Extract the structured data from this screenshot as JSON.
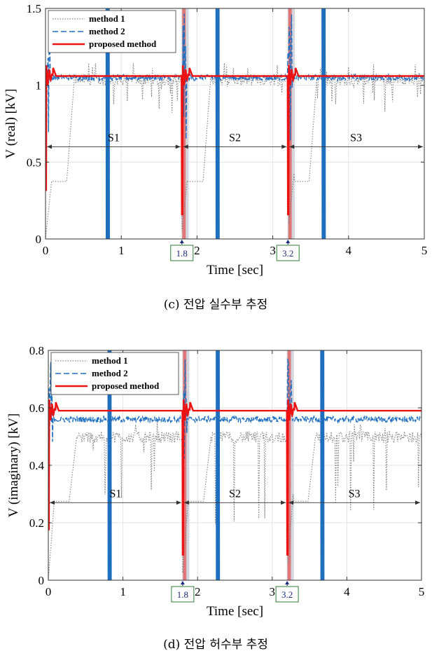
{
  "chart_data": [
    {
      "type": "line",
      "caption": "(c) 전압 실수부 추정",
      "xlabel": "Time [sec]",
      "ylabel": "V (real) [kV]",
      "xlim": [
        0,
        5
      ],
      "ylim": [
        0,
        1.5
      ],
      "x_ticks": [
        "0",
        "1",
        "2",
        "3",
        "4",
        "5"
      ],
      "y_ticks": [
        "0",
        "0.5",
        "1",
        "1.5"
      ],
      "grid": true,
      "legend_position": "top-left",
      "series": [
        {
          "name": "method 1",
          "style": "dotted",
          "color": "#808080",
          "settle": 1.04
        },
        {
          "name": "method 2",
          "style": "dashed",
          "color": "#1f6fbf",
          "settle": 1.05
        },
        {
          "name": "proposed method",
          "style": "solid",
          "color": "#ee1111",
          "settle": 1.06
        }
      ],
      "switch_times": [
        "1.8",
        "3.2"
      ],
      "segments": [
        {
          "label": "S1",
          "from": 0,
          "to": 1.8
        },
        {
          "label": "S2",
          "from": 1.8,
          "to": 3.2
        },
        {
          "label": "S3",
          "from": 3.2,
          "to": 5
        }
      ],
      "segment_arrow_y": 0.6
    },
    {
      "type": "line",
      "caption": "(d) 전압 허수부 추정",
      "xlabel": "Time [sec]",
      "ylabel": "V (imaginary) [kV]",
      "xlim": [
        0,
        5
      ],
      "ylim": [
        0,
        0.8
      ],
      "x_ticks": [
        "0",
        "1",
        "2",
        "3",
        "4",
        "5"
      ],
      "y_ticks": [
        "0",
        "0.2",
        "0.4",
        "0.6",
        "0.8"
      ],
      "grid": true,
      "legend_position": "top-left",
      "series": [
        {
          "name": "method 1",
          "style": "dotted",
          "color": "#808080",
          "settle": 0.5
        },
        {
          "name": "method 2",
          "style": "dashed",
          "color": "#1f6fbf",
          "settle": 0.56
        },
        {
          "name": "proposed method",
          "style": "solid",
          "color": "#ee1111",
          "settle": 0.59
        }
      ],
      "switch_times": [
        "1.8",
        "3.2"
      ],
      "segments": [
        {
          "label": "S1",
          "from": 0,
          "to": 1.8
        },
        {
          "label": "S2",
          "from": 1.8,
          "to": 3.2
        },
        {
          "label": "S3",
          "from": 3.2,
          "to": 5
        }
      ],
      "segment_arrow_y": 0.27
    }
  ]
}
